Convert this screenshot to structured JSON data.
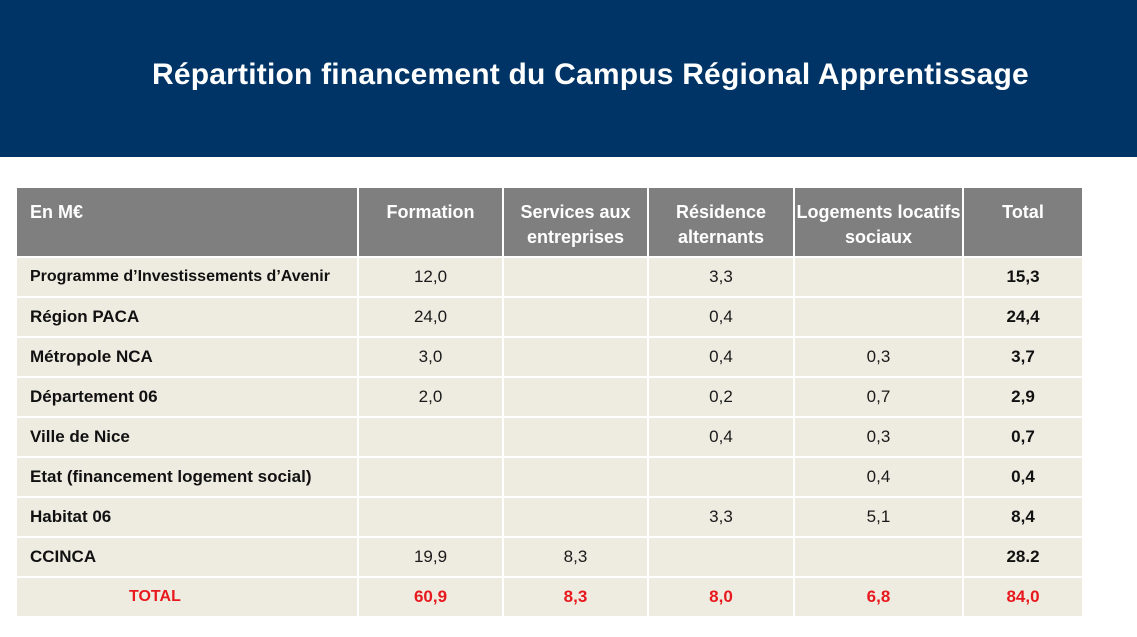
{
  "header": {
    "title": "Répartition financement du Campus Régional Apprentissage"
  },
  "table": {
    "columns": [
      "En M€",
      "Formation",
      "Services aux entreprises",
      "Résidence alternants",
      "Logements locatifs sociaux",
      "Total"
    ],
    "rows": [
      {
        "label": "Programme d’Investissements d’Avenir",
        "formation": "12,0",
        "services": "",
        "residence": "3,3",
        "logements": "",
        "total": "15,3"
      },
      {
        "label": "Région PACA",
        "formation": "24,0",
        "services": "",
        "residence": "0,4",
        "logements": "",
        "total": "24,4"
      },
      {
        "label": "Métropole NCA",
        "formation": "3,0",
        "services": "",
        "residence": "0,4",
        "logements": "0,3",
        "total": "3,7"
      },
      {
        "label": "Département 06",
        "formation": "2,0",
        "services": "",
        "residence": "0,2",
        "logements": "0,7",
        "total": "2,9"
      },
      {
        "label": "Ville de Nice",
        "formation": "",
        "services": "",
        "residence": "0,4",
        "logements": "0,3",
        "total": "0,7"
      },
      {
        "label": "Etat (financement logement social)",
        "formation": "",
        "services": "",
        "residence": "",
        "logements": "0,4",
        "total": "0,4"
      },
      {
        "label": "Habitat 06",
        "formation": "",
        "services": "",
        "residence": "3,3",
        "logements": "5,1",
        "total": "8,4"
      },
      {
        "label": "CCINCA",
        "formation": "19,9",
        "services": "8,3",
        "residence": "",
        "logements": "",
        "total": "28.2"
      }
    ],
    "total_row": {
      "label": "TOTAL",
      "formation": "60,9",
      "services": "8,3",
      "residence": "8,0",
      "logements": "6,8",
      "total": "84,0"
    }
  },
  "colors": {
    "banner": "#003366",
    "header_cell": "#7f7f7f",
    "body_cell": "#eeece1",
    "total_text": "#e8191e"
  }
}
